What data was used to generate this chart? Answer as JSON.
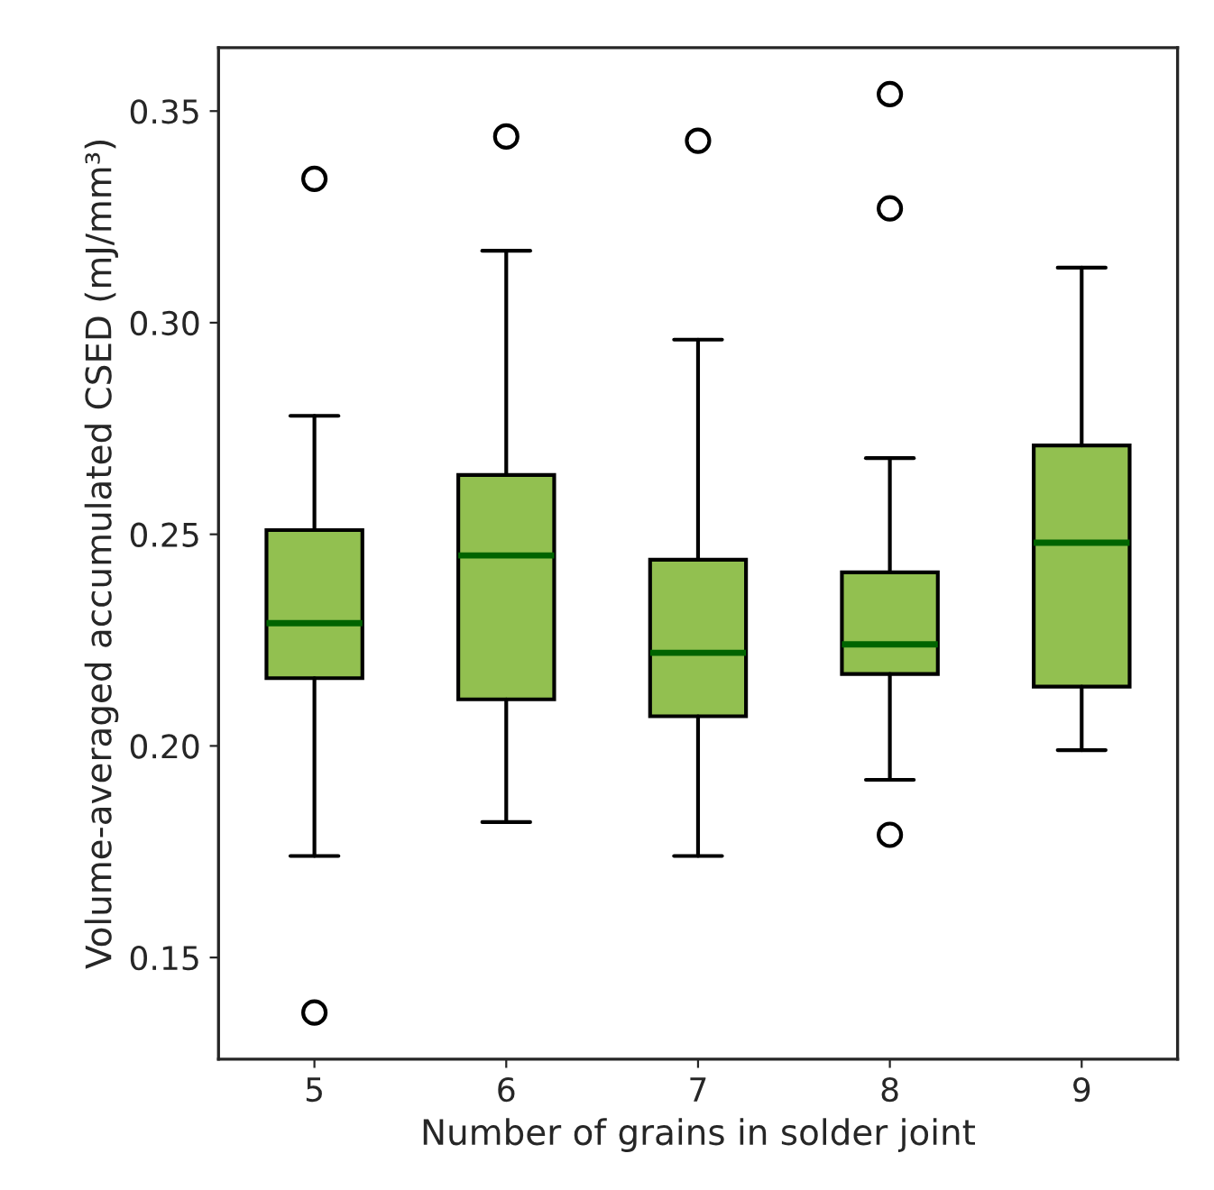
{
  "chart_data": {
    "type": "box",
    "xlabel": "Number of grains in solder joint",
    "ylabel": "Volume-averaged accumulated CSED (mJ/mm³)",
    "categories": [
      "5",
      "6",
      "7",
      "8",
      "9"
    ],
    "boxes": [
      {
        "low": 0.174,
        "q1": 0.216,
        "median": 0.229,
        "q3": 0.251,
        "high": 0.278,
        "outliers": [
          0.334,
          0.137
        ]
      },
      {
        "low": 0.182,
        "q1": 0.211,
        "median": 0.245,
        "q3": 0.264,
        "high": 0.317,
        "outliers": [
          0.344
        ]
      },
      {
        "low": 0.174,
        "q1": 0.207,
        "median": 0.222,
        "q3": 0.244,
        "high": 0.296,
        "outliers": [
          0.343
        ]
      },
      {
        "low": 0.192,
        "q1": 0.217,
        "median": 0.224,
        "q3": 0.241,
        "high": 0.268,
        "outliers": [
          0.354,
          0.327,
          0.179
        ]
      },
      {
        "low": 0.199,
        "q1": 0.214,
        "median": 0.248,
        "q3": 0.271,
        "high": 0.313
      }
    ],
    "color": "#92c050",
    "ylim": [
      0.126,
      0.365
    ],
    "yticks": [
      {
        "value": 0.15,
        "label": "0.15"
      },
      {
        "value": 0.2,
        "label": "0.20"
      },
      {
        "value": 0.25,
        "label": "0.25"
      },
      {
        "value": 0.3,
        "label": "0.30"
      },
      {
        "value": 0.35,
        "label": "0.35"
      }
    ],
    "grid": false,
    "legend": false
  }
}
